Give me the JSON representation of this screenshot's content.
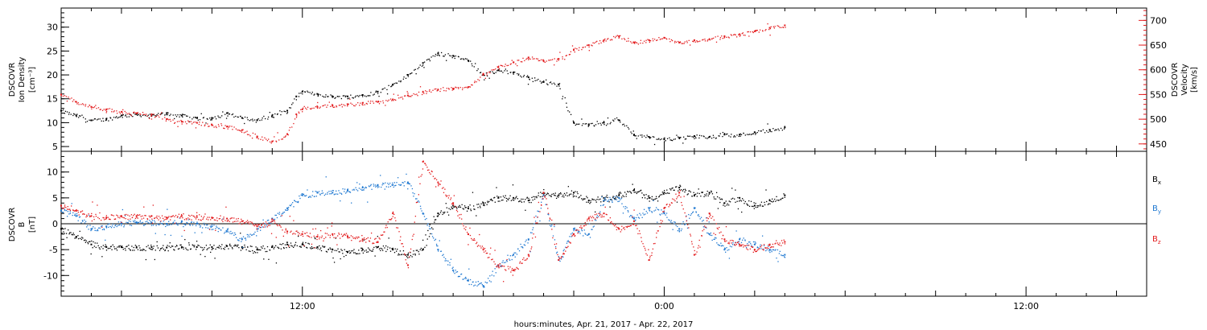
{
  "figure": {
    "xlabel": "hours:minutes, Apr. 21, 2017 - Apr. 22, 2017",
    "x_tick_labels": [
      "12:00",
      "0:00",
      "12:00"
    ],
    "x_tick_hours": [
      12,
      24,
      36
    ],
    "x_range_hours": [
      4.0,
      40.0
    ]
  },
  "chart_data": [
    {
      "type": "scatter",
      "panel": "plasma",
      "left_axis": {
        "label_lines": [
          "DSCOVR",
          "Ion Density",
          "[cm⁻³]"
        ],
        "ylim": [
          4,
          34
        ],
        "ticks": [
          5,
          10,
          15,
          20,
          25,
          30
        ],
        "color": "#000000"
      },
      "right_axis": {
        "label_lines": [
          "DSCOVR",
          "Velocity",
          "[km/s]"
        ],
        "ylim": [
          435,
          725
        ],
        "ticks": [
          450,
          500,
          550,
          600,
          650,
          700
        ],
        "color": "#e31a1c"
      },
      "series": [
        {
          "axis": "left",
          "color": "#000000",
          "x": [
            4.0,
            4.5,
            5.0,
            5.5,
            6.0,
            6.5,
            7.0,
            7.5,
            8.0,
            8.5,
            9.0,
            9.5,
            10.0,
            10.5,
            11.0,
            11.5,
            11.8,
            12.0,
            12.5,
            13.0,
            13.5,
            14.0,
            14.5,
            15.0,
            15.5,
            16.0,
            16.5,
            17.0,
            17.5,
            18.0,
            18.5,
            19.0,
            19.5,
            20.0,
            20.5,
            21.0,
            21.5,
            22.0,
            22.5,
            23.0,
            23.5,
            24.0,
            24.5,
            25.0,
            25.5,
            26.0,
            26.5,
            27.0,
            27.5,
            28.0
          ],
          "y": [
            12.5,
            11.5,
            10.5,
            10.8,
            11.5,
            11.8,
            11.5,
            12.0,
            11.5,
            11.0,
            11.0,
            12.0,
            11.0,
            10.5,
            11.5,
            12.5,
            15.5,
            16.5,
            16.0,
            15.5,
            15.5,
            15.8,
            16.5,
            18.0,
            20.0,
            22.5,
            24.5,
            24.0,
            23.0,
            20.0,
            21.0,
            20.5,
            19.5,
            18.5,
            18.0,
            10.0,
            9.5,
            10.0,
            10.5,
            7.5,
            7.0,
            6.5,
            6.8,
            7.2,
            7.0,
            7.5,
            7.5,
            8.0,
            8.5,
            9.0
          ]
        },
        {
          "axis": "right",
          "color": "#e31a1c",
          "x": [
            4.0,
            4.5,
            5.0,
            5.5,
            6.0,
            6.5,
            7.0,
            7.5,
            8.0,
            8.5,
            9.0,
            9.5,
            10.0,
            10.5,
            11.0,
            11.5,
            11.8,
            12.0,
            12.5,
            13.0,
            13.5,
            14.0,
            14.5,
            15.0,
            15.5,
            16.0,
            16.5,
            17.0,
            17.5,
            18.0,
            18.5,
            19.0,
            19.5,
            20.0,
            20.5,
            21.0,
            21.5,
            22.0,
            22.5,
            23.0,
            23.5,
            24.0,
            24.5,
            25.0,
            25.5,
            26.0,
            26.5,
            27.0,
            27.5,
            28.0
          ],
          "y": [
            550,
            535,
            525,
            520,
            515,
            512,
            510,
            500,
            495,
            493,
            488,
            485,
            478,
            465,
            455,
            470,
            510,
            520,
            525,
            528,
            530,
            533,
            535,
            540,
            548,
            555,
            560,
            562,
            565,
            592,
            605,
            615,
            625,
            618,
            622,
            640,
            650,
            660,
            668,
            655,
            660,
            665,
            655,
            660,
            662,
            668,
            672,
            678,
            685,
            690
          ]
        }
      ]
    },
    {
      "type": "scatter",
      "panel": "magnetic",
      "left_axis": {
        "label_lines": [
          "DSCOVR",
          "B",
          "[nT]"
        ],
        "ylim": [
          -14,
          14
        ],
        "ticks": [
          -10,
          -5,
          0,
          5,
          10
        ],
        "color": "#000000"
      },
      "zero_line": true,
      "legend": [
        "Bx",
        "By",
        "Bz"
      ],
      "series": [
        {
          "name": "Bx",
          "color": "#000000",
          "x": [
            4.0,
            4.5,
            5.0,
            5.5,
            6.0,
            6.5,
            7.0,
            7.5,
            8.0,
            8.5,
            9.0,
            9.5,
            10.0,
            10.5,
            11.0,
            11.5,
            12.0,
            12.5,
            13.0,
            13.5,
            14.0,
            14.5,
            15.0,
            15.5,
            16.0,
            16.5,
            17.0,
            17.5,
            18.0,
            18.5,
            19.0,
            19.5,
            20.0,
            20.5,
            21.0,
            21.5,
            22.0,
            22.5,
            23.0,
            23.5,
            24.0,
            24.5,
            25.0,
            25.5,
            26.0,
            26.5,
            27.0,
            27.5,
            28.0
          ],
          "y": [
            -1.0,
            -2.5,
            -4.0,
            -4.5,
            -4.5,
            -4.6,
            -4.5,
            -4.6,
            -4.5,
            -4.5,
            -4.5,
            -4.3,
            -4.5,
            -5.0,
            -4.5,
            -4.0,
            -4.0,
            -4.5,
            -5.0,
            -5.5,
            -5.0,
            -4.5,
            -5.0,
            -6.0,
            -5.0,
            2.0,
            3.5,
            3.0,
            4.0,
            5.0,
            5.0,
            4.5,
            6.0,
            5.5,
            6.0,
            4.5,
            5.0,
            5.5,
            6.5,
            5.0,
            6.0,
            7.0,
            5.5,
            6.0,
            4.0,
            5.0,
            3.5,
            4.5,
            5.5
          ]
        },
        {
          "name": "By",
          "color": "#1f78d1",
          "x": [
            4.0,
            4.5,
            5.0,
            5.5,
            6.0,
            6.5,
            7.0,
            7.5,
            8.0,
            8.5,
            9.0,
            9.5,
            10.0,
            10.5,
            11.0,
            11.5,
            12.0,
            12.5,
            13.0,
            13.5,
            14.0,
            14.5,
            15.0,
            15.5,
            16.0,
            16.5,
            17.0,
            17.5,
            18.0,
            18.5,
            19.0,
            19.5,
            20.0,
            20.5,
            21.0,
            21.5,
            22.0,
            22.5,
            23.0,
            23.5,
            24.0,
            24.5,
            25.0,
            25.5,
            26.0,
            26.5,
            27.0,
            27.5,
            28.0
          ],
          "y": [
            2.5,
            1.5,
            -1.0,
            -0.5,
            0.0,
            0.3,
            0.2,
            0.0,
            0.5,
            0.0,
            -0.5,
            -1.5,
            -3.0,
            -1.0,
            1.0,
            3.0,
            5.5,
            6.0,
            6.0,
            6.5,
            7.0,
            7.5,
            7.5,
            8.0,
            2.0,
            -5.0,
            -9.0,
            -11.0,
            -12.0,
            -8.0,
            -6.0,
            -3.0,
            5.5,
            -7.0,
            -1.0,
            -2.0,
            4.5,
            5.0,
            1.0,
            3.0,
            2.0,
            -1.0,
            3.0,
            -2.0,
            -5.0,
            -3.0,
            -4.0,
            -5.0,
            -6.0
          ]
        },
        {
          "name": "Bz",
          "color": "#e31a1c",
          "x": [
            4.0,
            4.5,
            5.0,
            5.5,
            6.0,
            6.5,
            7.0,
            7.5,
            8.0,
            8.5,
            9.0,
            9.5,
            10.0,
            10.5,
            11.0,
            11.5,
            12.0,
            12.5,
            13.0,
            13.5,
            14.0,
            14.5,
            15.0,
            15.5,
            16.0,
            16.5,
            17.0,
            17.5,
            18.0,
            18.5,
            19.0,
            19.5,
            20.0,
            20.5,
            21.0,
            21.5,
            22.0,
            22.5,
            23.0,
            23.5,
            24.0,
            24.5,
            25.0,
            25.5,
            26.0,
            26.5,
            27.0,
            27.5,
            28.0
          ],
          "y": [
            3.5,
            2.5,
            1.5,
            1.2,
            1.5,
            1.5,
            1.5,
            1.2,
            1.5,
            1.3,
            1.2,
            1.0,
            0.5,
            -0.5,
            0.5,
            -1.5,
            -2.0,
            -2.5,
            -2.0,
            -2.5,
            -3.0,
            -3.5,
            2.0,
            -8.0,
            12.0,
            8.0,
            4.0,
            -2.0,
            -5.0,
            -8.0,
            -9.0,
            -6.0,
            6.0,
            -7.0,
            -2.0,
            1.0,
            2.0,
            -1.0,
            0.5,
            -7.0,
            3.0,
            6.0,
            -6.0,
            2.0,
            -3.0,
            -4.0,
            -5.0,
            -4.0,
            -3.5
          ]
        }
      ]
    }
  ]
}
